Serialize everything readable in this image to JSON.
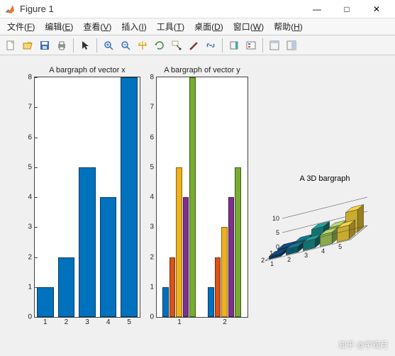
{
  "window": {
    "title": "Figure 1",
    "minimize": "—",
    "maximize": "□",
    "close": "✕"
  },
  "menu": {
    "items": [
      {
        "label": "文件",
        "key": "F"
      },
      {
        "label": "编辑",
        "key": "E"
      },
      {
        "label": "查看",
        "key": "V"
      },
      {
        "label": "插入",
        "key": "I"
      },
      {
        "label": "工具",
        "key": "T"
      },
      {
        "label": "桌面",
        "key": "D"
      },
      {
        "label": "窗口",
        "key": "W"
      },
      {
        "label": "帮助",
        "key": "H"
      }
    ]
  },
  "toolbar": {
    "new": "new",
    "open": "open",
    "save": "save",
    "print": "print",
    "pointer": "pointer",
    "zoomin": "zoomin",
    "zoomout": "zoomout",
    "pan": "pan",
    "rotate": "rotate",
    "datacursor": "datacursor",
    "brush": "brush",
    "link": "link",
    "colorbar": "colorbar",
    "legend": "legend",
    "layout": "layout",
    "dock": "dock",
    "undock": "undock"
  },
  "chart1": {
    "title": "A bargraph of vector x",
    "ylim": [
      0,
      8
    ],
    "ytick_step": 1,
    "categories": [
      "1",
      "2",
      "3",
      "4",
      "5"
    ],
    "values": [
      1,
      2,
      5,
      4,
      8
    ],
    "bar_color": "#0072bd",
    "bar_edge": "#003a66",
    "bar_width": 0.8,
    "background": "#ffffff"
  },
  "chart2": {
    "title": "A bargraph of vector y",
    "ylim": [
      0,
      8
    ],
    "ytick_step": 1,
    "groups": [
      "1",
      "2"
    ],
    "series_colors": [
      "#0072bd",
      "#d95319",
      "#edb120",
      "#7e2f8e",
      "#77ac30"
    ],
    "series_edges": [
      "#003a66",
      "#7a2a0a",
      "#8a6400",
      "#421850",
      "#3e5a18"
    ],
    "data": [
      [
        1,
        2,
        5,
        4,
        8
      ],
      [
        1,
        2,
        3,
        4,
        5
      ]
    ],
    "bar_width": 0.15,
    "background": "#ffffff"
  },
  "chart3": {
    "title": "A 3D bargraph",
    "zlim": [
      0,
      10
    ],
    "ztick_step": 5,
    "xcats": [
      "1",
      "2"
    ],
    "ycats": [
      "1",
      "2",
      "3",
      "4",
      "5"
    ],
    "data": [
      [
        1,
        2,
        5,
        4,
        8
      ],
      [
        1,
        2,
        3,
        4,
        5
      ]
    ],
    "row_colors_top": [
      "#0a4b8c",
      "#107896",
      "#1ca39e",
      "#b8d96a",
      "#f5d547"
    ],
    "row_colors_front": [
      "#06335f",
      "#0b5568",
      "#13726f",
      "#8aa94a",
      "#c9ab2e"
    ],
    "row_colors_side": [
      "#042241",
      "#073a47",
      "#0c4f4c",
      "#637a33",
      "#97801f"
    ],
    "background": "#ffffff"
  },
  "watermark": "知乎 @宇观月"
}
